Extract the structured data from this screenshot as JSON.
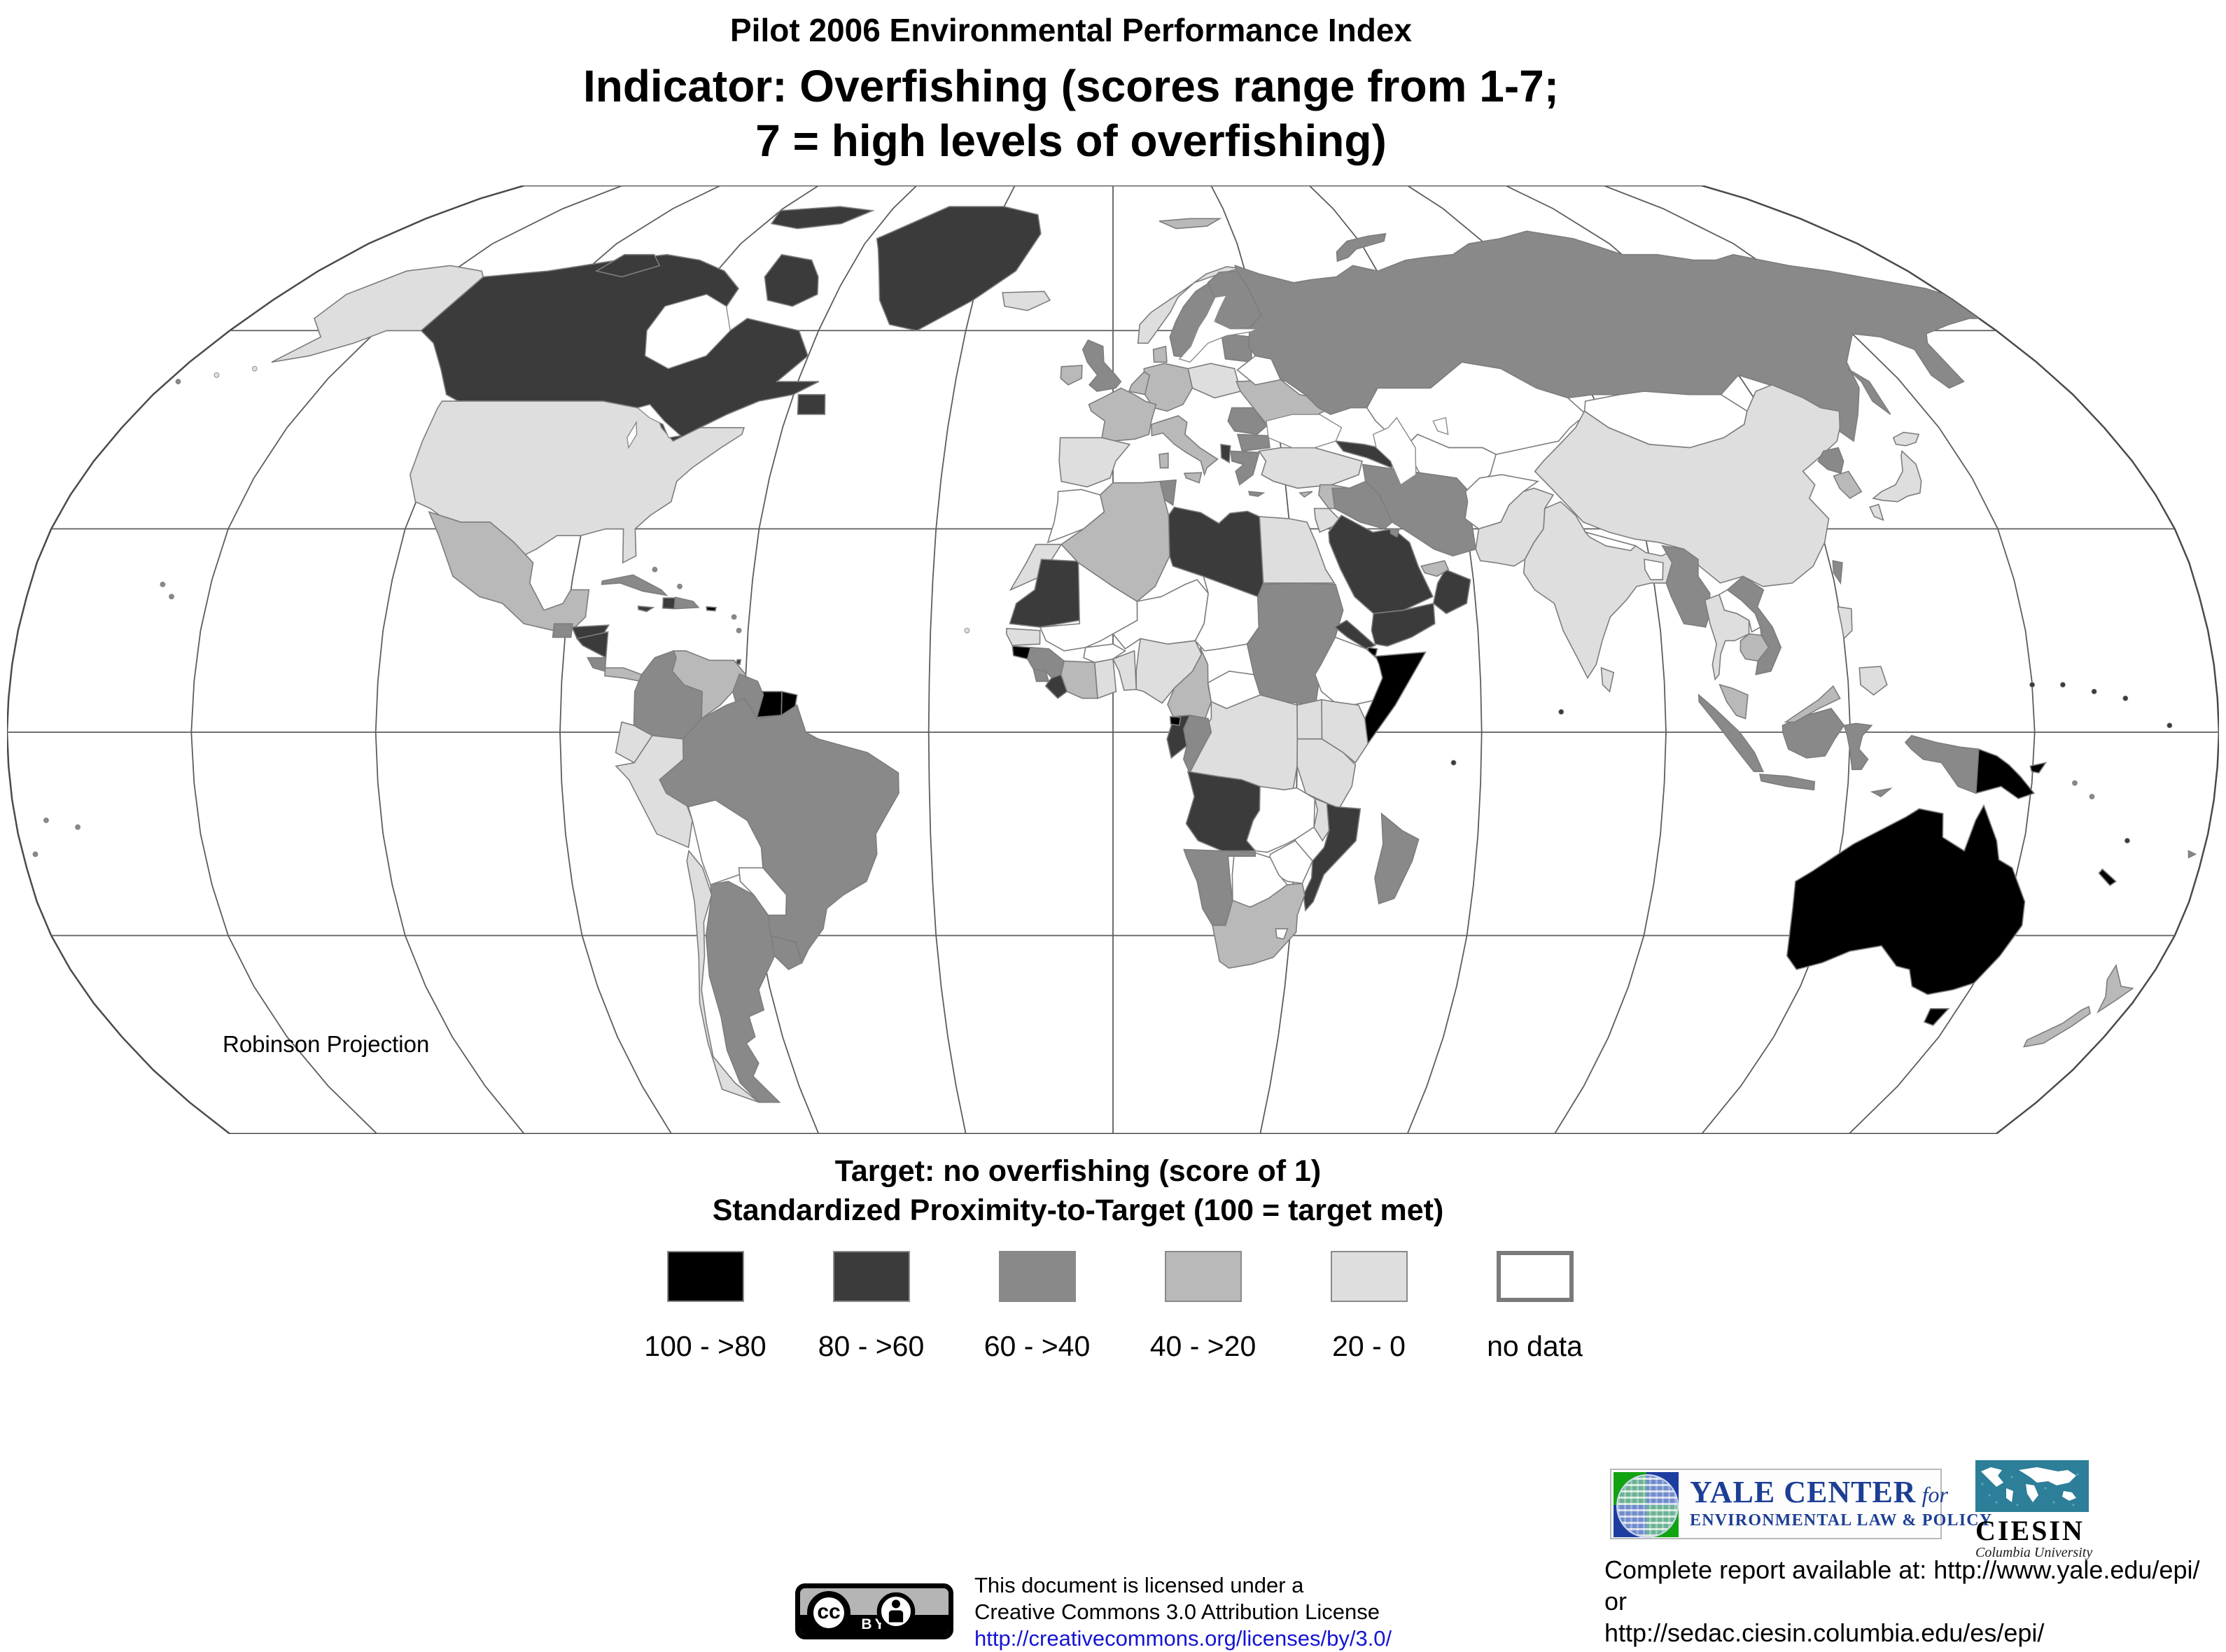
{
  "header": {
    "line1": "Pilot 2006 Environmental Performance Index",
    "line2": "Indicator: Overfishing (scores range from 1-7;",
    "line3": "7 = high levels of overfishing)"
  },
  "map": {
    "projection_label": "Robinson Projection",
    "ocean_color": "#ffffff",
    "graticule_color": "#5d5d5d",
    "outline_color": "#4a4a4a",
    "border_color": "#7d7d7d",
    "palette": {
      "c1": "#000000",
      "c2": "#3b3b3b",
      "c3": "#898989",
      "c4": "#b9b9b9",
      "c5": "#dedede",
      "nd": "#ffffff"
    }
  },
  "legend": {
    "title_line1": "Target: no overfishing (score of 1)",
    "title_line2": "Standardized Proximity-to-Target (100 = target met)",
    "classes": [
      {
        "label": "100 - >80",
        "color": "#000000"
      },
      {
        "label": "80 - >60",
        "color": "#3b3b3b"
      },
      {
        "label": "60 - >40",
        "color": "#898989"
      },
      {
        "label": "40 - >20",
        "color": "#b9b9b9"
      },
      {
        "label": "20 - 0",
        "color": "#dedede"
      },
      {
        "label": "no data",
        "color": "#ffffff",
        "border": "#7a7a7a"
      }
    ]
  },
  "countries": {
    "canada": "c2",
    "baffin": "c2",
    "victoria_is": "c2",
    "ellesmere": "c2",
    "newfoundland": "c2",
    "greenland": "c2",
    "alaska": "c5",
    "usa": "c5",
    "mexico": "c4",
    "guatemala": "c3",
    "honduras": "c2",
    "nicaragua": "c2",
    "costarica": "c3",
    "panama": "c4",
    "cuba": "c3",
    "jamaica": "c2",
    "haiti": "c2",
    "domrep": "c3",
    "puertorico": "c1",
    "trinidad": "c2",
    "colombia": "c3",
    "venezuela": "c4",
    "guyana": "c3",
    "suriname": "c1",
    "frguiana": "c1",
    "ecuador": "c5",
    "peru": "c5",
    "chile": "c5",
    "bolivia": "nd",
    "paraguay": "nd",
    "argentina": "c3",
    "uruguay": "c3",
    "brazil": "c3",
    "iceland": "c5",
    "uk": "c3",
    "ireland": "c4",
    "norway": "c5",
    "sweden": "c3",
    "finland": "c3",
    "denmark": "c4",
    "baltics": "c3",
    "poland": "c5",
    "germany": "c4",
    "benelux": "c4",
    "france": "c4",
    "iberia": "c5",
    "italy": "c4",
    "sicily": "c4",
    "sardinia": "c4",
    "ukraine": "c4",
    "belarus": "nd",
    "romania": "c3",
    "bulgaria": "c3",
    "albania": "c2",
    "greece": "c3",
    "crete": "c3",
    "russia": "c3",
    "novayazemlya": "c3",
    "sakhalin": "c3",
    "svalbard": "c4",
    "kazakhstan": "nd",
    "centralasia": "nd",
    "mongolia": "nd",
    "turkey": "c5",
    "caucasus": "c2",
    "syria": "c4",
    "iraq": "c3",
    "iran": "c3",
    "israel_jordan": "c5",
    "saudi": "c2",
    "yemen": "c2",
    "oman": "c2",
    "uae": "c4",
    "kuwait": "c3",
    "afghanistan": "nd",
    "pakistan": "c5",
    "india": "c5",
    "bangladesh": "nd",
    "nepal": "nd",
    "srilanka": "c5",
    "china": "c5",
    "nkorea": "c3",
    "skorea": "c4",
    "honshu": "c5",
    "hokkaido": "c5",
    "kyushu": "c5",
    "taiwan": "c3",
    "myanmar": "c3",
    "thailand": "c5",
    "laos": "nd",
    "cambodia": "c4",
    "vietnam": "c3",
    "malaysia": "c4",
    "malaysia_borneo": "c4",
    "sumatra": "c3",
    "java": "c3",
    "kalimantan": "c3",
    "sulawesi": "c3",
    "papua_west": "c3",
    "timor": "c3",
    "png": "c1",
    "newbritain": "c1",
    "luzon": "c5",
    "mindanao": "c5",
    "australia": "c1",
    "tasmania": "c1",
    "nz_north": "c4",
    "nz_south": "c4",
    "newcaledonia": "c1",
    "fiji": "c3",
    "madagascar": "c3",
    "morocco": "nd",
    "wsahara": "c5",
    "mauritania": "c2",
    "senegal": "c5",
    "guineabissau": "c1",
    "guinea": "c3",
    "sierraleone": "c3",
    "liberia": "c2",
    "ivorycoast": "c4",
    "ghana": "c5",
    "togobenin": "c5",
    "burkina": "nd",
    "mali": "nd",
    "niger": "nd",
    "chad": "nd",
    "nigeria": "c5",
    "cameroon": "c4",
    "car": "nd",
    "sudan": "c3",
    "eritrea": "c2",
    "djibouti": "c1",
    "ethiopia": "nd",
    "somalia": "c1",
    "kenya": "c5",
    "uganda": "c5",
    "tanzania": "c5",
    "drc": "c5",
    "congo": "c3",
    "gabon": "c2",
    "eqguinea": "c1",
    "angola": "c2",
    "zambia": "nd",
    "malawi": "c5",
    "mozambique": "c2",
    "zimbabwe": "nd",
    "botswana": "nd",
    "namibia": "c3",
    "southafrica": "c4",
    "lesotho": "nd",
    "tunisia": "c3",
    "algeria": "c4",
    "libya": "c2",
    "egypt": "c5",
    "cyprus": "c4"
  },
  "footer": {
    "cc_badge": "BY",
    "cc_circle": "cc",
    "license_line1": "This document is licensed under a",
    "license_line2": "Creative Commons 3.0 Attribution License",
    "license_url": "http://creativecommons.org/licenses/by/3.0/",
    "report_line1": "Complete report available at: http://www.yale.edu/epi/ or",
    "report_line2": "http://sedac.ciesin.columbia.edu/es/epi/"
  },
  "logos": {
    "yale": {
      "title": "YALE CENTER",
      "title_suffix": "for",
      "subtitle": "ENVIRONMENTAL LAW & POLICY"
    },
    "ciesin": {
      "name": "CIESIN",
      "subtitle": "Columbia University"
    }
  }
}
